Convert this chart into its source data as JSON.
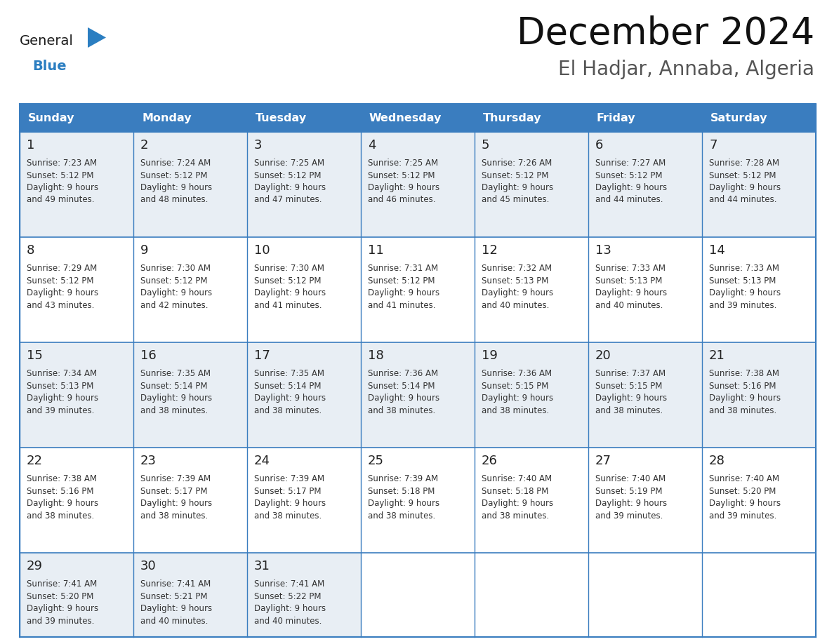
{
  "title": "December 2024",
  "subtitle": "El Hadjar, Annaba, Algeria",
  "header_bg": "#3a7dbf",
  "header_text_color": "#ffffff",
  "day_names": [
    "Sunday",
    "Monday",
    "Tuesday",
    "Wednesday",
    "Thursday",
    "Friday",
    "Saturday"
  ],
  "row_bg": [
    "#e8eef4",
    "#ffffff",
    "#e8eef4",
    "#ffffff",
    "#e8eef4"
  ],
  "cell_border_color": "#3a7dbf",
  "days": [
    {
      "day": 1,
      "col": 0,
      "row": 0,
      "sunrise": "7:23 AM",
      "sunset": "5:12 PM",
      "daylight_mins": "49 minutes."
    },
    {
      "day": 2,
      "col": 1,
      "row": 0,
      "sunrise": "7:24 AM",
      "sunset": "5:12 PM",
      "daylight_mins": "48 minutes."
    },
    {
      "day": 3,
      "col": 2,
      "row": 0,
      "sunrise": "7:25 AM",
      "sunset": "5:12 PM",
      "daylight_mins": "47 minutes."
    },
    {
      "day": 4,
      "col": 3,
      "row": 0,
      "sunrise": "7:25 AM",
      "sunset": "5:12 PM",
      "daylight_mins": "46 minutes."
    },
    {
      "day": 5,
      "col": 4,
      "row": 0,
      "sunrise": "7:26 AM",
      "sunset": "5:12 PM",
      "daylight_mins": "45 minutes."
    },
    {
      "day": 6,
      "col": 5,
      "row": 0,
      "sunrise": "7:27 AM",
      "sunset": "5:12 PM",
      "daylight_mins": "44 minutes."
    },
    {
      "day": 7,
      "col": 6,
      "row": 0,
      "sunrise": "7:28 AM",
      "sunset": "5:12 PM",
      "daylight_mins": "44 minutes."
    },
    {
      "day": 8,
      "col": 0,
      "row": 1,
      "sunrise": "7:29 AM",
      "sunset": "5:12 PM",
      "daylight_mins": "43 minutes."
    },
    {
      "day": 9,
      "col": 1,
      "row": 1,
      "sunrise": "7:30 AM",
      "sunset": "5:12 PM",
      "daylight_mins": "42 minutes."
    },
    {
      "day": 10,
      "col": 2,
      "row": 1,
      "sunrise": "7:30 AM",
      "sunset": "5:12 PM",
      "daylight_mins": "41 minutes."
    },
    {
      "day": 11,
      "col": 3,
      "row": 1,
      "sunrise": "7:31 AM",
      "sunset": "5:12 PM",
      "daylight_mins": "41 minutes."
    },
    {
      "day": 12,
      "col": 4,
      "row": 1,
      "sunrise": "7:32 AM",
      "sunset": "5:13 PM",
      "daylight_mins": "40 minutes."
    },
    {
      "day": 13,
      "col": 5,
      "row": 1,
      "sunrise": "7:33 AM",
      "sunset": "5:13 PM",
      "daylight_mins": "40 minutes."
    },
    {
      "day": 14,
      "col": 6,
      "row": 1,
      "sunrise": "7:33 AM",
      "sunset": "5:13 PM",
      "daylight_mins": "39 minutes."
    },
    {
      "day": 15,
      "col": 0,
      "row": 2,
      "sunrise": "7:34 AM",
      "sunset": "5:13 PM",
      "daylight_mins": "39 minutes."
    },
    {
      "day": 16,
      "col": 1,
      "row": 2,
      "sunrise": "7:35 AM",
      "sunset": "5:14 PM",
      "daylight_mins": "38 minutes."
    },
    {
      "day": 17,
      "col": 2,
      "row": 2,
      "sunrise": "7:35 AM",
      "sunset": "5:14 PM",
      "daylight_mins": "38 minutes."
    },
    {
      "day": 18,
      "col": 3,
      "row": 2,
      "sunrise": "7:36 AM",
      "sunset": "5:14 PM",
      "daylight_mins": "38 minutes."
    },
    {
      "day": 19,
      "col": 4,
      "row": 2,
      "sunrise": "7:36 AM",
      "sunset": "5:15 PM",
      "daylight_mins": "38 minutes."
    },
    {
      "day": 20,
      "col": 5,
      "row": 2,
      "sunrise": "7:37 AM",
      "sunset": "5:15 PM",
      "daylight_mins": "38 minutes."
    },
    {
      "day": 21,
      "col": 6,
      "row": 2,
      "sunrise": "7:38 AM",
      "sunset": "5:16 PM",
      "daylight_mins": "38 minutes."
    },
    {
      "day": 22,
      "col": 0,
      "row": 3,
      "sunrise": "7:38 AM",
      "sunset": "5:16 PM",
      "daylight_mins": "38 minutes."
    },
    {
      "day": 23,
      "col": 1,
      "row": 3,
      "sunrise": "7:39 AM",
      "sunset": "5:17 PM",
      "daylight_mins": "38 minutes."
    },
    {
      "day": 24,
      "col": 2,
      "row": 3,
      "sunrise": "7:39 AM",
      "sunset": "5:17 PM",
      "daylight_mins": "38 minutes."
    },
    {
      "day": 25,
      "col": 3,
      "row": 3,
      "sunrise": "7:39 AM",
      "sunset": "5:18 PM",
      "daylight_mins": "38 minutes."
    },
    {
      "day": 26,
      "col": 4,
      "row": 3,
      "sunrise": "7:40 AM",
      "sunset": "5:18 PM",
      "daylight_mins": "38 minutes."
    },
    {
      "day": 27,
      "col": 5,
      "row": 3,
      "sunrise": "7:40 AM",
      "sunset": "5:19 PM",
      "daylight_mins": "39 minutes."
    },
    {
      "day": 28,
      "col": 6,
      "row": 3,
      "sunrise": "7:40 AM",
      "sunset": "5:20 PM",
      "daylight_mins": "39 minutes."
    },
    {
      "day": 29,
      "col": 0,
      "row": 4,
      "sunrise": "7:41 AM",
      "sunset": "5:20 PM",
      "daylight_mins": "39 minutes."
    },
    {
      "day": 30,
      "col": 1,
      "row": 4,
      "sunrise": "7:41 AM",
      "sunset": "5:21 PM",
      "daylight_mins": "40 minutes."
    },
    {
      "day": 31,
      "col": 2,
      "row": 4,
      "sunrise": "7:41 AM",
      "sunset": "5:22 PM",
      "daylight_mins": "40 minutes."
    }
  ],
  "num_rows": 5,
  "logo_general_color": "#1a1a1a",
  "logo_blue_color": "#2b7ec1",
  "logo_triangle_color": "#2b7ec1",
  "title_fontsize": 38,
  "subtitle_fontsize": 20,
  "header_fontsize": 11.5,
  "day_num_fontsize": 13,
  "cell_text_fontsize": 8.5
}
